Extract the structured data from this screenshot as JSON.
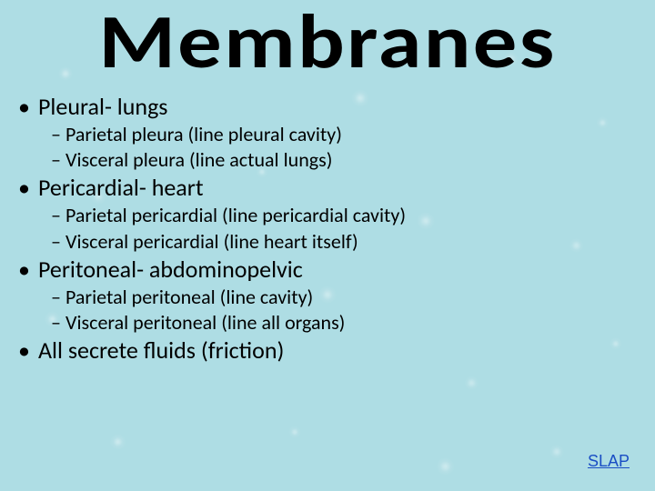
{
  "title": "Membranes",
  "bullets": [
    {
      "level": 1,
      "text": "Pleural- lungs"
    },
    {
      "level": 2,
      "text": "Parietal pleura (line pleural cavity)"
    },
    {
      "level": 2,
      "text": "Visceral pleura (line actual lungs)"
    },
    {
      "level": 1,
      "text": "Pericardial- heart"
    },
    {
      "level": 2,
      "text": "Parietal pericardial (line pericardial cavity)"
    },
    {
      "level": 2,
      "text": "Visceral pericardial (line heart itself)"
    },
    {
      "level": 1,
      "text": "Peritoneal- abdominopelvic"
    },
    {
      "level": 2,
      "text": "Parietal peritoneal (line cavity)"
    },
    {
      "level": 2,
      "text": "Visceral peritoneal (line all organs)"
    },
    {
      "level": 1,
      "text": "All secrete fluids (friction)"
    }
  ],
  "link_text": "SLAP",
  "colors": {
    "background": "#aedde4",
    "text": "#000000",
    "link": "#1a4ec4"
  },
  "typography": {
    "title_fontsize": 84,
    "title_weight": 900,
    "l1_fontsize": 26,
    "l2_fontsize": 22,
    "link_fontsize": 18,
    "font_family": "Calibri"
  },
  "markers": {
    "l1": "•",
    "l2": "–"
  }
}
